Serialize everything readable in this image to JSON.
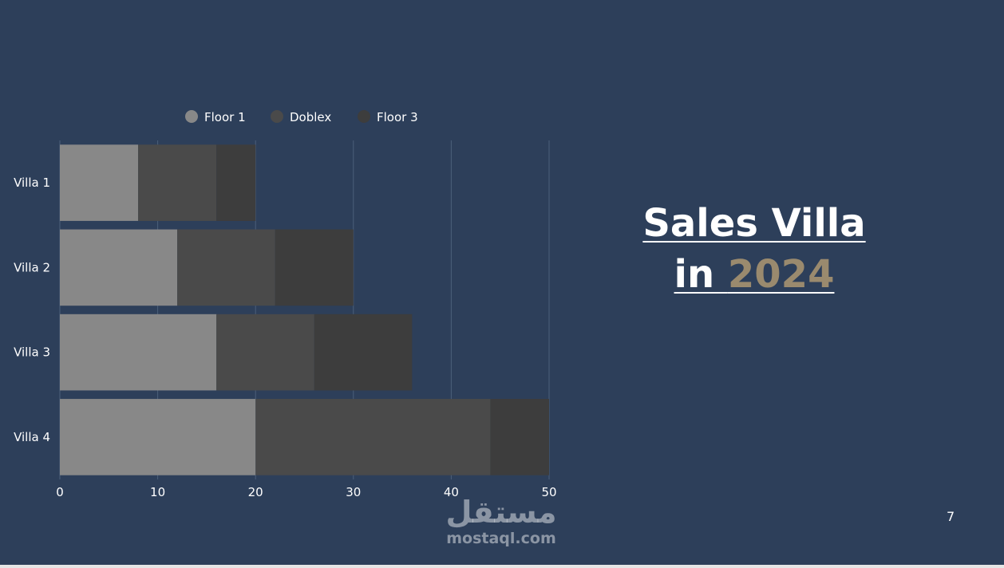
{
  "title": {
    "line1": "Sales Villa",
    "line2_prefix": "in ",
    "line2_year": "2024"
  },
  "page_number": "7",
  "watermark": {
    "arabic": "مستقل",
    "latin": "mostaql.com"
  },
  "colors": {
    "background": "#2d3f5a",
    "floor1": "#888888",
    "doblex": "#4a4a4a",
    "floor3": "#3d3d3d",
    "title_year": "#9a8a6e",
    "grid": "#4c5f79"
  },
  "chart_data": {
    "type": "bar",
    "orientation": "horizontal",
    "stacked": true,
    "categories": [
      "Villa 1",
      "Villa 2",
      "Villa 3",
      "Villa 4"
    ],
    "series": [
      {
        "name": "Floor 1",
        "values": [
          8,
          12,
          16,
          20
        ],
        "color": "#888888"
      },
      {
        "name": "Doblex",
        "values": [
          8,
          10,
          10,
          24
        ],
        "color": "#4a4a4a"
      },
      {
        "name": "Floor 3",
        "values": [
          4,
          8,
          10,
          6
        ],
        "color": "#3d3d3d"
      }
    ],
    "xlim": [
      0,
      50
    ],
    "xticks": [
      "0",
      "10",
      "20",
      "30",
      "40",
      "50"
    ],
    "grid": true,
    "legend": "top"
  }
}
